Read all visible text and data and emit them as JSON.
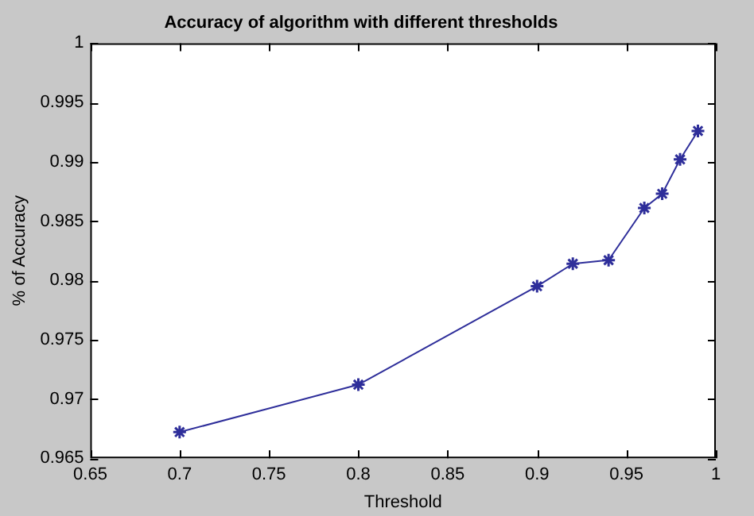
{
  "chart_data": {
    "type": "line",
    "title": "Accuracy of algorithm with different thresholds",
    "xlabel": "Threshold",
    "ylabel": "% of Accuracy",
    "x": [
      0.7,
      0.8,
      0.9,
      0.92,
      0.94,
      0.96,
      0.97,
      0.98,
      0.99
    ],
    "series": [
      {
        "color": "#2e2e9a",
        "values": [
          0.9672,
          0.9712,
          0.9795,
          0.9814,
          0.9817,
          0.9861,
          0.9873,
          0.9902,
          0.9926
        ]
      }
    ],
    "xlim": [
      0.65,
      1
    ],
    "xticks": [
      0.65,
      0.7,
      0.75,
      0.8,
      0.85,
      0.9,
      0.95,
      1
    ],
    "ylim": [
      0.965,
      1
    ],
    "yticks": [
      0.965,
      0.97,
      0.975,
      0.98,
      0.985,
      0.99,
      0.995,
      1
    ],
    "marker": "cross",
    "line_style": "solid",
    "grid": false,
    "legend": false
  }
}
